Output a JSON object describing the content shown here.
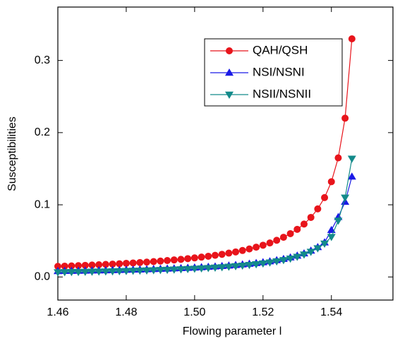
{
  "chart_data": {
    "type": "line",
    "xlabel": "Flowing parameter l",
    "ylabel": "Susceptibilities",
    "x": [
      1.46,
      1.462,
      1.464,
      1.466,
      1.468,
      1.47,
      1.472,
      1.474,
      1.476,
      1.478,
      1.48,
      1.482,
      1.484,
      1.486,
      1.488,
      1.49,
      1.492,
      1.494,
      1.496,
      1.498,
      1.5,
      1.502,
      1.504,
      1.506,
      1.508,
      1.51,
      1.512,
      1.514,
      1.516,
      1.518,
      1.52,
      1.522,
      1.524,
      1.526,
      1.528,
      1.53,
      1.532,
      1.534,
      1.536,
      1.538,
      1.54,
      1.542,
      1.544,
      1.546
    ],
    "series": [
      {
        "name": "QAH/QSH",
        "color": "#e8141b",
        "marker": "circle",
        "values": [
          0.0147,
          0.015,
          0.0153,
          0.0157,
          0.0161,
          0.0165,
          0.0169,
          0.0174,
          0.0178,
          0.0183,
          0.0189,
          0.0194,
          0.02,
          0.0206,
          0.0213,
          0.022,
          0.0228,
          0.0236,
          0.0244,
          0.0254,
          0.0264,
          0.0275,
          0.0287,
          0.03,
          0.0314,
          0.033,
          0.0347,
          0.0367,
          0.0388,
          0.0413,
          0.044,
          0.0471,
          0.0508,
          0.055,
          0.06,
          0.066,
          0.0733,
          0.0825,
          0.0943,
          0.11,
          0.132,
          0.165,
          0.22,
          0.33
        ]
      },
      {
        "name": "NSI/NSNI",
        "color": "#1a1ae6",
        "marker": "triangle-up",
        "values": [
          0.0081,
          0.0083,
          0.0084,
          0.0085,
          0.0087,
          0.0089,
          0.0091,
          0.0092,
          0.0094,
          0.0096,
          0.0099,
          0.0101,
          0.0103,
          0.0106,
          0.0109,
          0.0112,
          0.0115,
          0.0118,
          0.0122,
          0.0126,
          0.013,
          0.0135,
          0.014,
          0.0145,
          0.0151,
          0.0158,
          0.0165,
          0.0173,
          0.0182,
          0.0192,
          0.0203,
          0.0216,
          0.0232,
          0.0249,
          0.027,
          0.0295,
          0.0326,
          0.0364,
          0.0413,
          0.0478,
          0.065,
          0.083,
          0.104,
          0.139
        ]
      },
      {
        "name": "NSII/NSNII",
        "color": "#138a8a",
        "marker": "triangle-down",
        "values": [
          0.0066,
          0.0068,
          0.0069,
          0.007,
          0.0072,
          0.0074,
          0.0076,
          0.0077,
          0.0079,
          0.0081,
          0.0084,
          0.0086,
          0.0088,
          0.0091,
          0.0094,
          0.0097,
          0.01,
          0.0103,
          0.0107,
          0.0111,
          0.0115,
          0.012,
          0.0125,
          0.013,
          0.0136,
          0.0143,
          0.015,
          0.0158,
          0.0167,
          0.0177,
          0.0188,
          0.0201,
          0.0217,
          0.0234,
          0.0255,
          0.028,
          0.0311,
          0.0349,
          0.0398,
          0.0463,
          0.0555,
          0.078,
          0.11,
          0.164
        ]
      }
    ],
    "xlim": [
      1.46,
      1.558
    ],
    "ylim": [
      -0.032,
      0.374
    ],
    "xticks": [
      1.46,
      1.48,
      {
        "value": 1.5,
        "label": "1.50"
      },
      1.52,
      1.54
    ],
    "yticks": [
      {
        "value": 0,
        "label": "0.0"
      },
      0.1,
      0.2,
      0.3
    ],
    "legend": "upper right"
  }
}
